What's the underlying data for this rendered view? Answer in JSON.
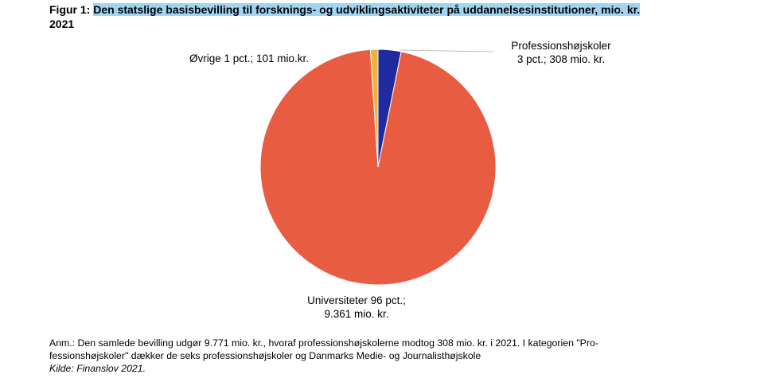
{
  "title": {
    "prefix": "Figur 1: ",
    "highlighted": "Den statslige basisbevilling til forsknings- og udviklingsaktiviteter på uddannelsesinstitutioner, mio. kr.",
    "year": "2021"
  },
  "chart_data": {
    "type": "pie",
    "title": "Den statslige basisbevilling til forsknings- og udviklingsaktiviteter på uddannelsesinstitutioner, mio. kr. 2021",
    "slices": [
      {
        "name": "Professionshøjskoler",
        "value": 308,
        "label_lines": [
          "Professionshøjskoler",
          "3 pct.; 308 mio. kr."
        ],
        "color": "#1f2a9e"
      },
      {
        "name": "Universiteter",
        "value": 9361,
        "label_lines": [
          "Universiteter 96 pct.;",
          "9.361 mio. kr."
        ],
        "color": "#e85d42"
      },
      {
        "name": "Øvrige",
        "value": 101,
        "label_lines": [
          "Øvrige 1 pct.; 101 mio.kr."
        ],
        "color": "#f0b23c"
      }
    ],
    "legend": "none"
  },
  "notes": {
    "line1": "Anm.: Den samlede bevilling udgør 9.771 mio. kr., hvoraf professionshøjskolerne modtog 308 mio. kr. i 2021. I kategorien \"Pro-",
    "line2": "fessionshøjskoler\" dækker de seks professionshøjskoler og Danmarks Medie- og Journalisthøjskole",
    "source_prefix": "Kilde: ",
    "source": "Finanslov 2021."
  }
}
